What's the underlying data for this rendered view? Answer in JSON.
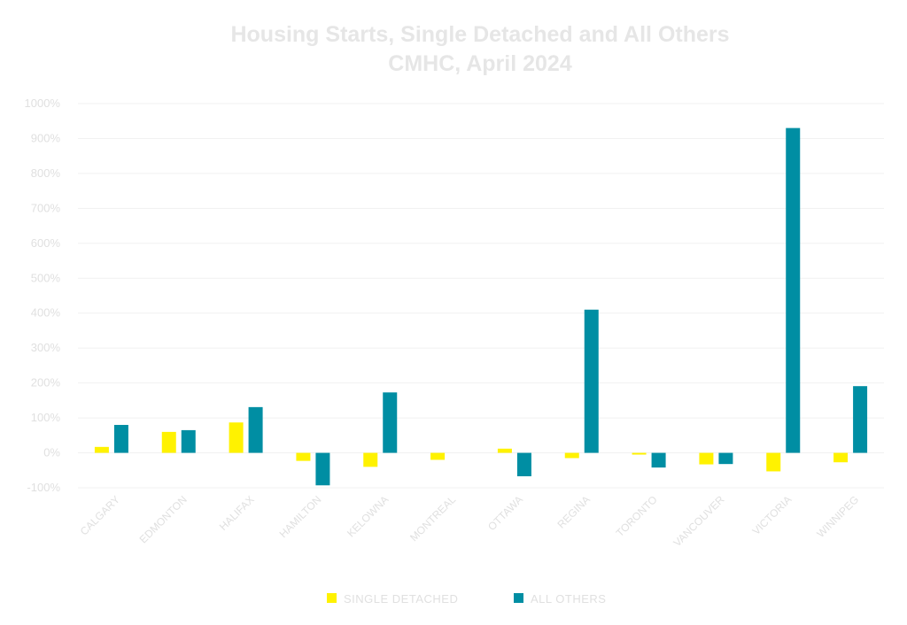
{
  "chart_data": {
    "type": "bar",
    "title": [
      "Housing Starts, Single Detached and All Others",
      "CMHC, April 2024"
    ],
    "categories": [
      "CALGARY",
      "EDMONTON",
      "HALIFAX",
      "HAMILTON",
      "KELOWNA",
      "MONTREAL",
      "OTTAWA",
      "REGINA",
      "TORONTO",
      "VANCOUVER",
      "VICTORIA",
      "WINNIPEG"
    ],
    "series": [
      {
        "name": "SINGLE DETACHED",
        "color": "#fff200",
        "values": [
          17,
          60,
          87,
          -23,
          -40,
          -20,
          12,
          -15,
          -5,
          -33,
          -53,
          -27
        ]
      },
      {
        "name": "ALL OTHERS",
        "color": "#008ea3",
        "values": [
          80,
          65,
          131,
          -93,
          173,
          0,
          -67,
          410,
          -42,
          -32,
          930,
          191
        ]
      }
    ],
    "ylim": [
      -100,
      1000
    ],
    "yticks": [
      "-100%",
      "0%",
      "100%",
      "200%",
      "300%",
      "400%",
      "500%",
      "600%",
      "700%",
      "800%",
      "900%",
      "1000%"
    ],
    "grid": true,
    "legend": "bottom-center"
  }
}
